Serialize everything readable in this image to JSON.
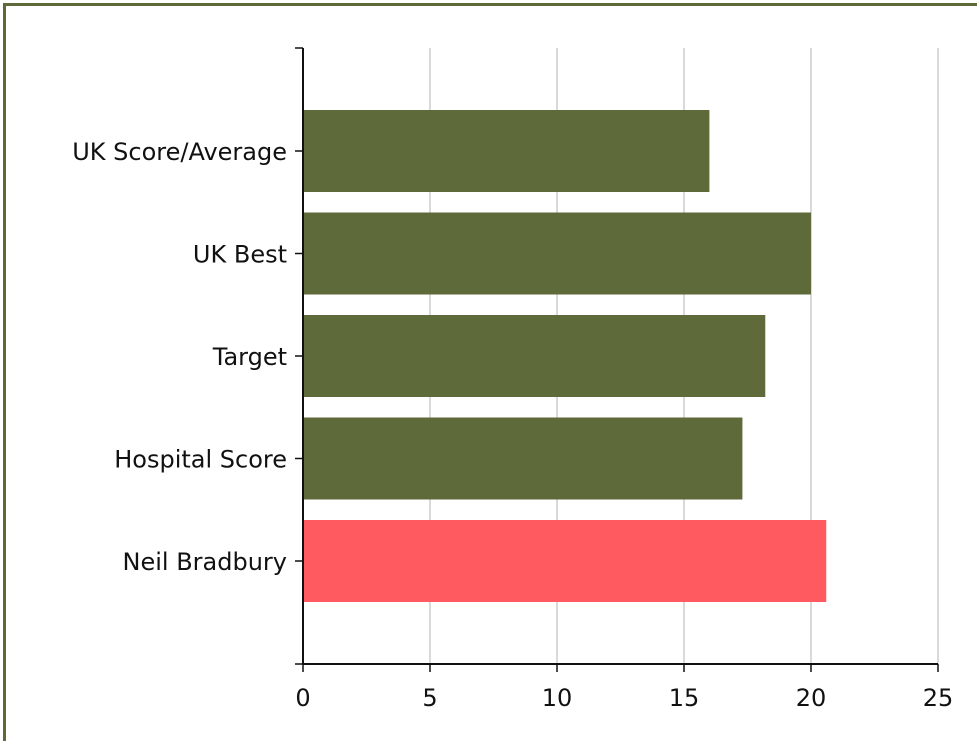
{
  "chart_data": {
    "type": "bar",
    "orientation": "horizontal",
    "categories": [
      "UK Score/Average",
      "UK Best",
      "Target",
      "Hospital Score",
      "Neil Bradbury"
    ],
    "values": [
      16.0,
      20.0,
      18.2,
      17.3,
      20.6
    ],
    "xlim": [
      0,
      25
    ],
    "xticks": [
      "0",
      "5",
      "10",
      "15",
      "20",
      "25"
    ],
    "grid": "vertical",
    "colors": {
      "default_bar": "#5f6a3a",
      "highlight_bar": "#ff5a5f",
      "grid": "#d9d9d9",
      "axis": "#111111",
      "frame": "#5f6a3a"
    },
    "highlight_category": "Neil Bradbury"
  }
}
